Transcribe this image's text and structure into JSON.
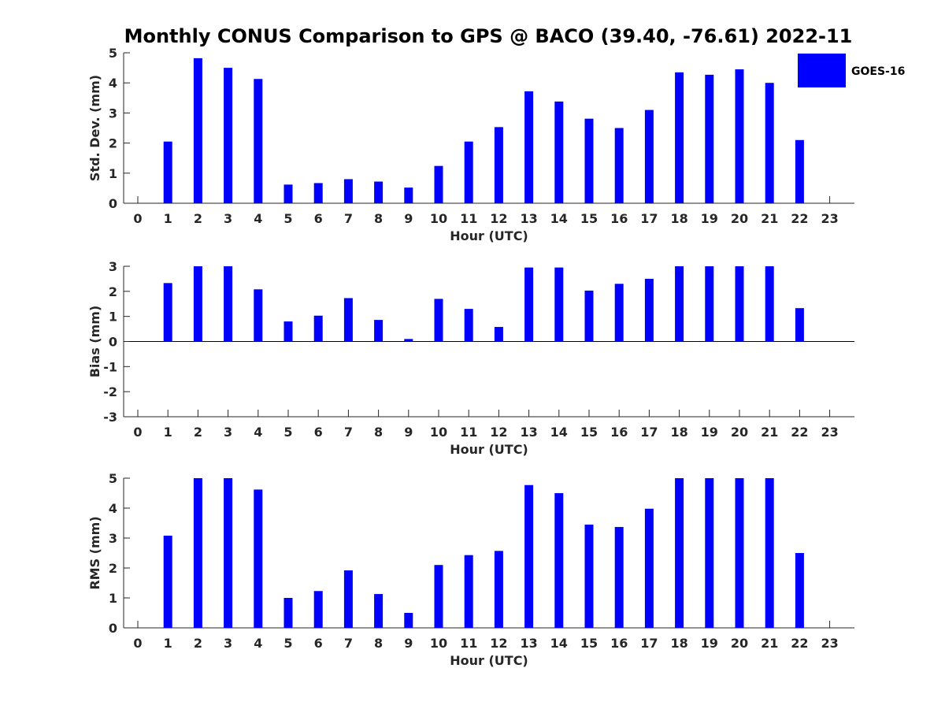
{
  "title": "Monthly CONUS Comparison to GPS @ BACO (39.40, -76.61) 2022-11",
  "colors": {
    "bar": "#0000ff",
    "axis": "#262626",
    "background": "#ffffff"
  },
  "legend": {
    "label": "GOES-16",
    "placement": "top-right"
  },
  "chart_data": [
    {
      "type": "bar",
      "xlabel": "Hour (UTC)",
      "ylabel": "Std. Dev. (mm)",
      "ylim": [
        0,
        5
      ],
      "yticks": [
        0,
        1,
        2,
        3,
        4,
        5
      ],
      "categories": [
        "0",
        "1",
        "2",
        "3",
        "4",
        "5",
        "6",
        "7",
        "8",
        "9",
        "10",
        "11",
        "12",
        "13",
        "14",
        "15",
        "16",
        "17",
        "18",
        "19",
        "20",
        "21",
        "22",
        "23"
      ],
      "series": [
        {
          "name": "GOES-16",
          "values": [
            null,
            2.05,
            4.82,
            4.5,
            4.13,
            0.62,
            0.67,
            0.8,
            0.72,
            0.52,
            1.24,
            2.05,
            2.53,
            3.72,
            3.38,
            2.81,
            2.5,
            3.1,
            4.35,
            4.27,
            4.45,
            4.0,
            2.1,
            null
          ]
        }
      ]
    },
    {
      "type": "bar",
      "xlabel": "Hour (UTC)",
      "ylabel": "Bias (mm)",
      "ylim": [
        -3,
        3
      ],
      "yticks": [
        -3,
        -2,
        -1,
        0,
        1,
        2,
        3
      ],
      "categories": [
        "0",
        "1",
        "2",
        "3",
        "4",
        "5",
        "6",
        "7",
        "8",
        "9",
        "10",
        "11",
        "12",
        "13",
        "14",
        "15",
        "16",
        "17",
        "18",
        "19",
        "20",
        "21",
        "22",
        "23"
      ],
      "series": [
        {
          "name": "GOES-16",
          "values": [
            null,
            2.33,
            3.0,
            3.0,
            2.08,
            0.8,
            1.03,
            1.73,
            0.86,
            0.1,
            1.7,
            1.3,
            0.58,
            2.95,
            2.95,
            2.03,
            2.3,
            2.5,
            3.0,
            3.0,
            3.0,
            3.0,
            1.33,
            null
          ]
        }
      ]
    },
    {
      "type": "bar",
      "xlabel": "Hour (UTC)",
      "ylabel": "RMS (mm)",
      "ylim": [
        0,
        5
      ],
      "yticks": [
        0,
        1,
        2,
        3,
        4,
        5
      ],
      "categories": [
        "0",
        "1",
        "2",
        "3",
        "4",
        "5",
        "6",
        "7",
        "8",
        "9",
        "10",
        "11",
        "12",
        "13",
        "14",
        "15",
        "16",
        "17",
        "18",
        "19",
        "20",
        "21",
        "22",
        "23"
      ],
      "series": [
        {
          "name": "GOES-16",
          "values": [
            null,
            3.08,
            5.0,
            5.0,
            4.62,
            1.0,
            1.23,
            1.92,
            1.13,
            0.5,
            2.1,
            2.43,
            2.57,
            4.77,
            4.5,
            3.45,
            3.37,
            3.98,
            5.0,
            5.0,
            5.0,
            5.0,
            2.5,
            null
          ]
        }
      ]
    }
  ]
}
